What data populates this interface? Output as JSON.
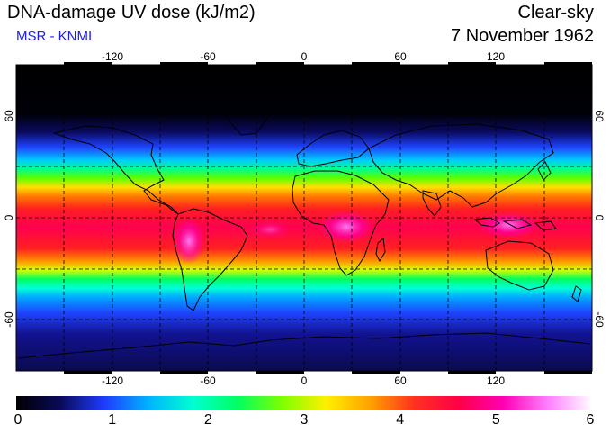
{
  "header": {
    "title": "DNA-damage UV dose (kJ/m2)",
    "subtitle": "MSR - KNMI",
    "condition": "Clear-sky",
    "date": "7 November 1962"
  },
  "map": {
    "projection": "equirectangular",
    "lon_ticks": [
      -120,
      -60,
      0,
      60,
      120
    ],
    "lat_ticks": [
      60,
      0,
      -60
    ],
    "lon_range": [
      -180,
      180
    ],
    "lat_range": [
      -90,
      90
    ],
    "grid": "dashed, every 30 degrees",
    "colormap": "UV dose palette"
  },
  "colorbar": {
    "min": 0,
    "max": 6,
    "labels": [
      "0",
      "1",
      "2",
      "3",
      "4",
      "5",
      "6"
    ],
    "stops": [
      "#000000",
      "#0a0a5a",
      "#1f3cff",
      "#00b4ff",
      "#00ffd0",
      "#00ff60",
      "#7dff00",
      "#fff000",
      "#ffa000",
      "#ff3020",
      "#ff0048",
      "#ff00b4",
      "#ff80ff",
      "#ffffff"
    ]
  }
}
